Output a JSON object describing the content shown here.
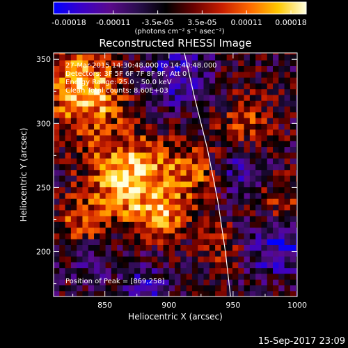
{
  "chart_data": {
    "type": "heatmap",
    "title": "Reconstructed RHESSI Image",
    "xlabel": "Heliocentric X (arcsec)",
    "ylabel": "Heliocentric Y (arcsec)",
    "xlim": [
      810,
      1000
    ],
    "ylim": [
      165,
      355
    ],
    "x_ticks": [
      850,
      900,
      950,
      1000
    ],
    "y_ticks": [
      200,
      250,
      300,
      350
    ],
    "colorbar": {
      "ticks": [
        "-0.00018",
        "-0.00011",
        "-3.5e-05",
        "3.5e-05",
        "0.00011",
        "0.00018"
      ],
      "range": [
        -0.00018,
        0.00018
      ],
      "unit_label": "(photons cm⁻² s⁻¹ asec⁻²)",
      "colormap": [
        "#0000ff",
        "#3a00c8",
        "#5a0a8c",
        "#2a0e4e",
        "#000000",
        "#6a0000",
        "#c81e00",
        "#ff6a00",
        "#ffc800",
        "#ffffe0"
      ]
    },
    "peak_position": [
      869,
      258
    ],
    "peak_value": 0.00018,
    "limb_curve": [
      [
        912,
        355
      ],
      [
        920,
        320
      ],
      [
        930,
        280
      ],
      [
        938,
        240
      ],
      [
        944,
        200
      ],
      [
        948,
        165
      ]
    ],
    "bright_sources": [
      {
        "x": 869,
        "y": 258,
        "sigma": 22,
        "amp": 1.0
      },
      {
        "x": 835,
        "y": 322,
        "sigma": 20,
        "amp": 0.85
      },
      {
        "x": 895,
        "y": 228,
        "sigma": 12,
        "amp": 0.7
      },
      {
        "x": 918,
        "y": 262,
        "sigma": 16,
        "amp": 0.55
      },
      {
        "x": 960,
        "y": 300,
        "sigma": 16,
        "amp": 0.45
      },
      {
        "x": 985,
        "y": 240,
        "sigma": 14,
        "amp": 0.4
      },
      {
        "x": 830,
        "y": 222,
        "sigma": 14,
        "amp": 0.5
      },
      {
        "x": 940,
        "y": 205,
        "sigma": 12,
        "amp": 0.35
      }
    ],
    "dark_regions": [
      {
        "x": 905,
        "y": 335,
        "sigma": 18,
        "amp": 0.6
      },
      {
        "x": 955,
        "y": 265,
        "sigma": 16,
        "amp": 0.5
      },
      {
        "x": 985,
        "y": 205,
        "sigma": 16,
        "amp": 0.7
      },
      {
        "x": 880,
        "y": 170,
        "sigma": 14,
        "amp": 0.5
      },
      {
        "x": 838,
        "y": 195,
        "sigma": 12,
        "amp": 0.4
      }
    ]
  },
  "annotations": {
    "time_range": "27-Mar-2015 14:30:48.000 to 14:40:48.000",
    "detectors": "Detectors: 3F 5F 6F 7F 8F 9F, Att 0",
    "energy_range": "Energy Range: 25.0 - 50.0 keV",
    "method_counts": "Clean    Total counts: 8.60E+03",
    "peak_position": "Position of Peak = [869,258]"
  },
  "footer": {
    "date": "15-Sep-2017 23:09"
  }
}
